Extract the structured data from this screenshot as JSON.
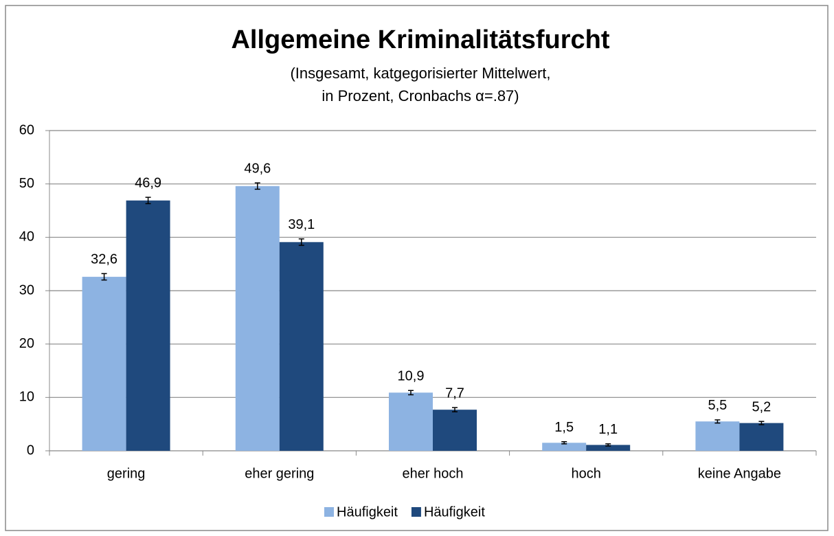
{
  "chart_data": {
    "type": "bar",
    "title": "Allgemeine Kriminalitätsfurcht",
    "subtitle": [
      "(Insgesamt, katgegorisierter Mittelwert,",
      "in Prozent, Cronbachs α=.87)"
    ],
    "categories": [
      "gering",
      "eher gering",
      "eher hoch",
      "hoch",
      "keine Angabe"
    ],
    "series": [
      {
        "name": "Häufigkeit",
        "color": "#8db3e2",
        "values": [
          32.6,
          49.6,
          10.9,
          1.5,
          5.5
        ],
        "value_labels": [
          "32,6",
          "49,6",
          "10,9",
          "1,5",
          "5,5"
        ],
        "errors": [
          0.6,
          0.6,
          0.4,
          0.2,
          0.3
        ]
      },
      {
        "name": "Häufigkeit",
        "color": "#1f497d",
        "values": [
          46.9,
          39.1,
          7.7,
          1.1,
          5.2
        ],
        "value_labels": [
          "46,9",
          "39,1",
          "7,7",
          "1,1",
          "5,2"
        ],
        "errors": [
          0.6,
          0.6,
          0.4,
          0.2,
          0.3
        ]
      }
    ],
    "ylim": [
      0,
      60
    ],
    "yticks": [
      0,
      10,
      20,
      30,
      40,
      50,
      60
    ],
    "grid": true,
    "legend": "bottom"
  }
}
